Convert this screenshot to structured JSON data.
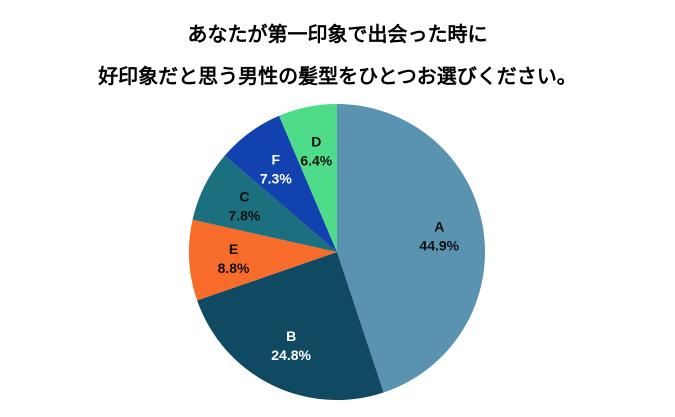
{
  "title_lines": [
    "あなたが第一印象で出会った時に",
    "好印象だと思う男性の髪型をひとつお選びください。"
  ],
  "chart_data": {
    "type": "pie",
    "title": "あなたが第一印象で出会った時に好印象だと思う男性の髪型をひとつお選びください。",
    "start": "12 o'clock",
    "direction": "clockwise",
    "slices": [
      {
        "label": "A",
        "value": 44.9,
        "value_label": "44.9%",
        "color": "#5a93b0",
        "text_color": "#111111"
      },
      {
        "label": "B",
        "value": 24.8,
        "value_label": "24.8%",
        "color": "#0f4a62",
        "text_color": "#ffffff"
      },
      {
        "label": "E",
        "value": 8.8,
        "value_label": "8.8%",
        "color": "#f76b2b",
        "text_color": "#111111"
      },
      {
        "label": "C",
        "value": 7.8,
        "value_label": "7.8%",
        "color": "#1b6f7e",
        "text_color": "#111111"
      },
      {
        "label": "F",
        "value": 7.3,
        "value_label": "7.3%",
        "color": "#1241b0",
        "text_color": "#ffffff"
      },
      {
        "label": "D",
        "value": 6.4,
        "value_label": "6.4%",
        "color": "#4fdc8a",
        "text_color": "#111111"
      }
    ]
  }
}
